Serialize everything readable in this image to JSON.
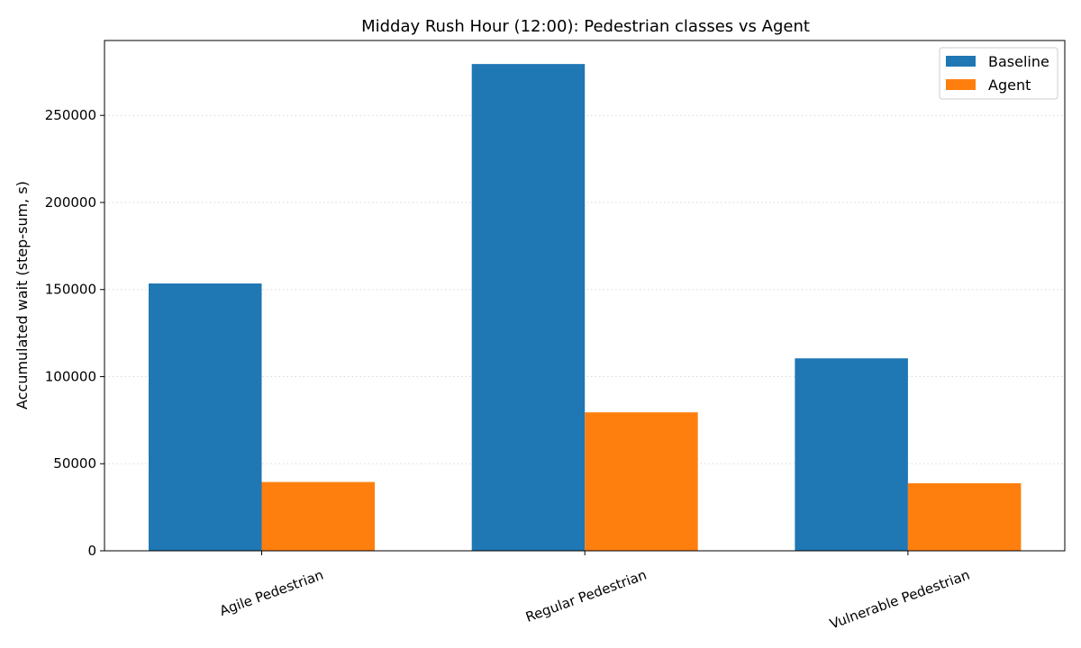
{
  "chart_data": {
    "type": "bar",
    "title": "Midday Rush Hour (12:00): Pedestrian classes vs Agent",
    "xlabel": "",
    "ylabel": "Accumulated wait (step-sum, s)",
    "categories": [
      "Agile Pedestrian",
      "Regular Pedestrian",
      "Vulnerable Pedestrian"
    ],
    "series": [
      {
        "name": "Baseline",
        "values": [
          153500,
          279500,
          110500
        ],
        "color": "#1f77b4"
      },
      {
        "name": "Agent",
        "values": [
          39500,
          79500,
          38800
        ],
        "color": "#ff7f0e"
      }
    ],
    "ylim": [
      0,
      293000
    ],
    "yticks": [
      0,
      50000,
      100000,
      150000,
      200000,
      250000
    ],
    "grid": "y, dotted",
    "legend": "top-right"
  }
}
